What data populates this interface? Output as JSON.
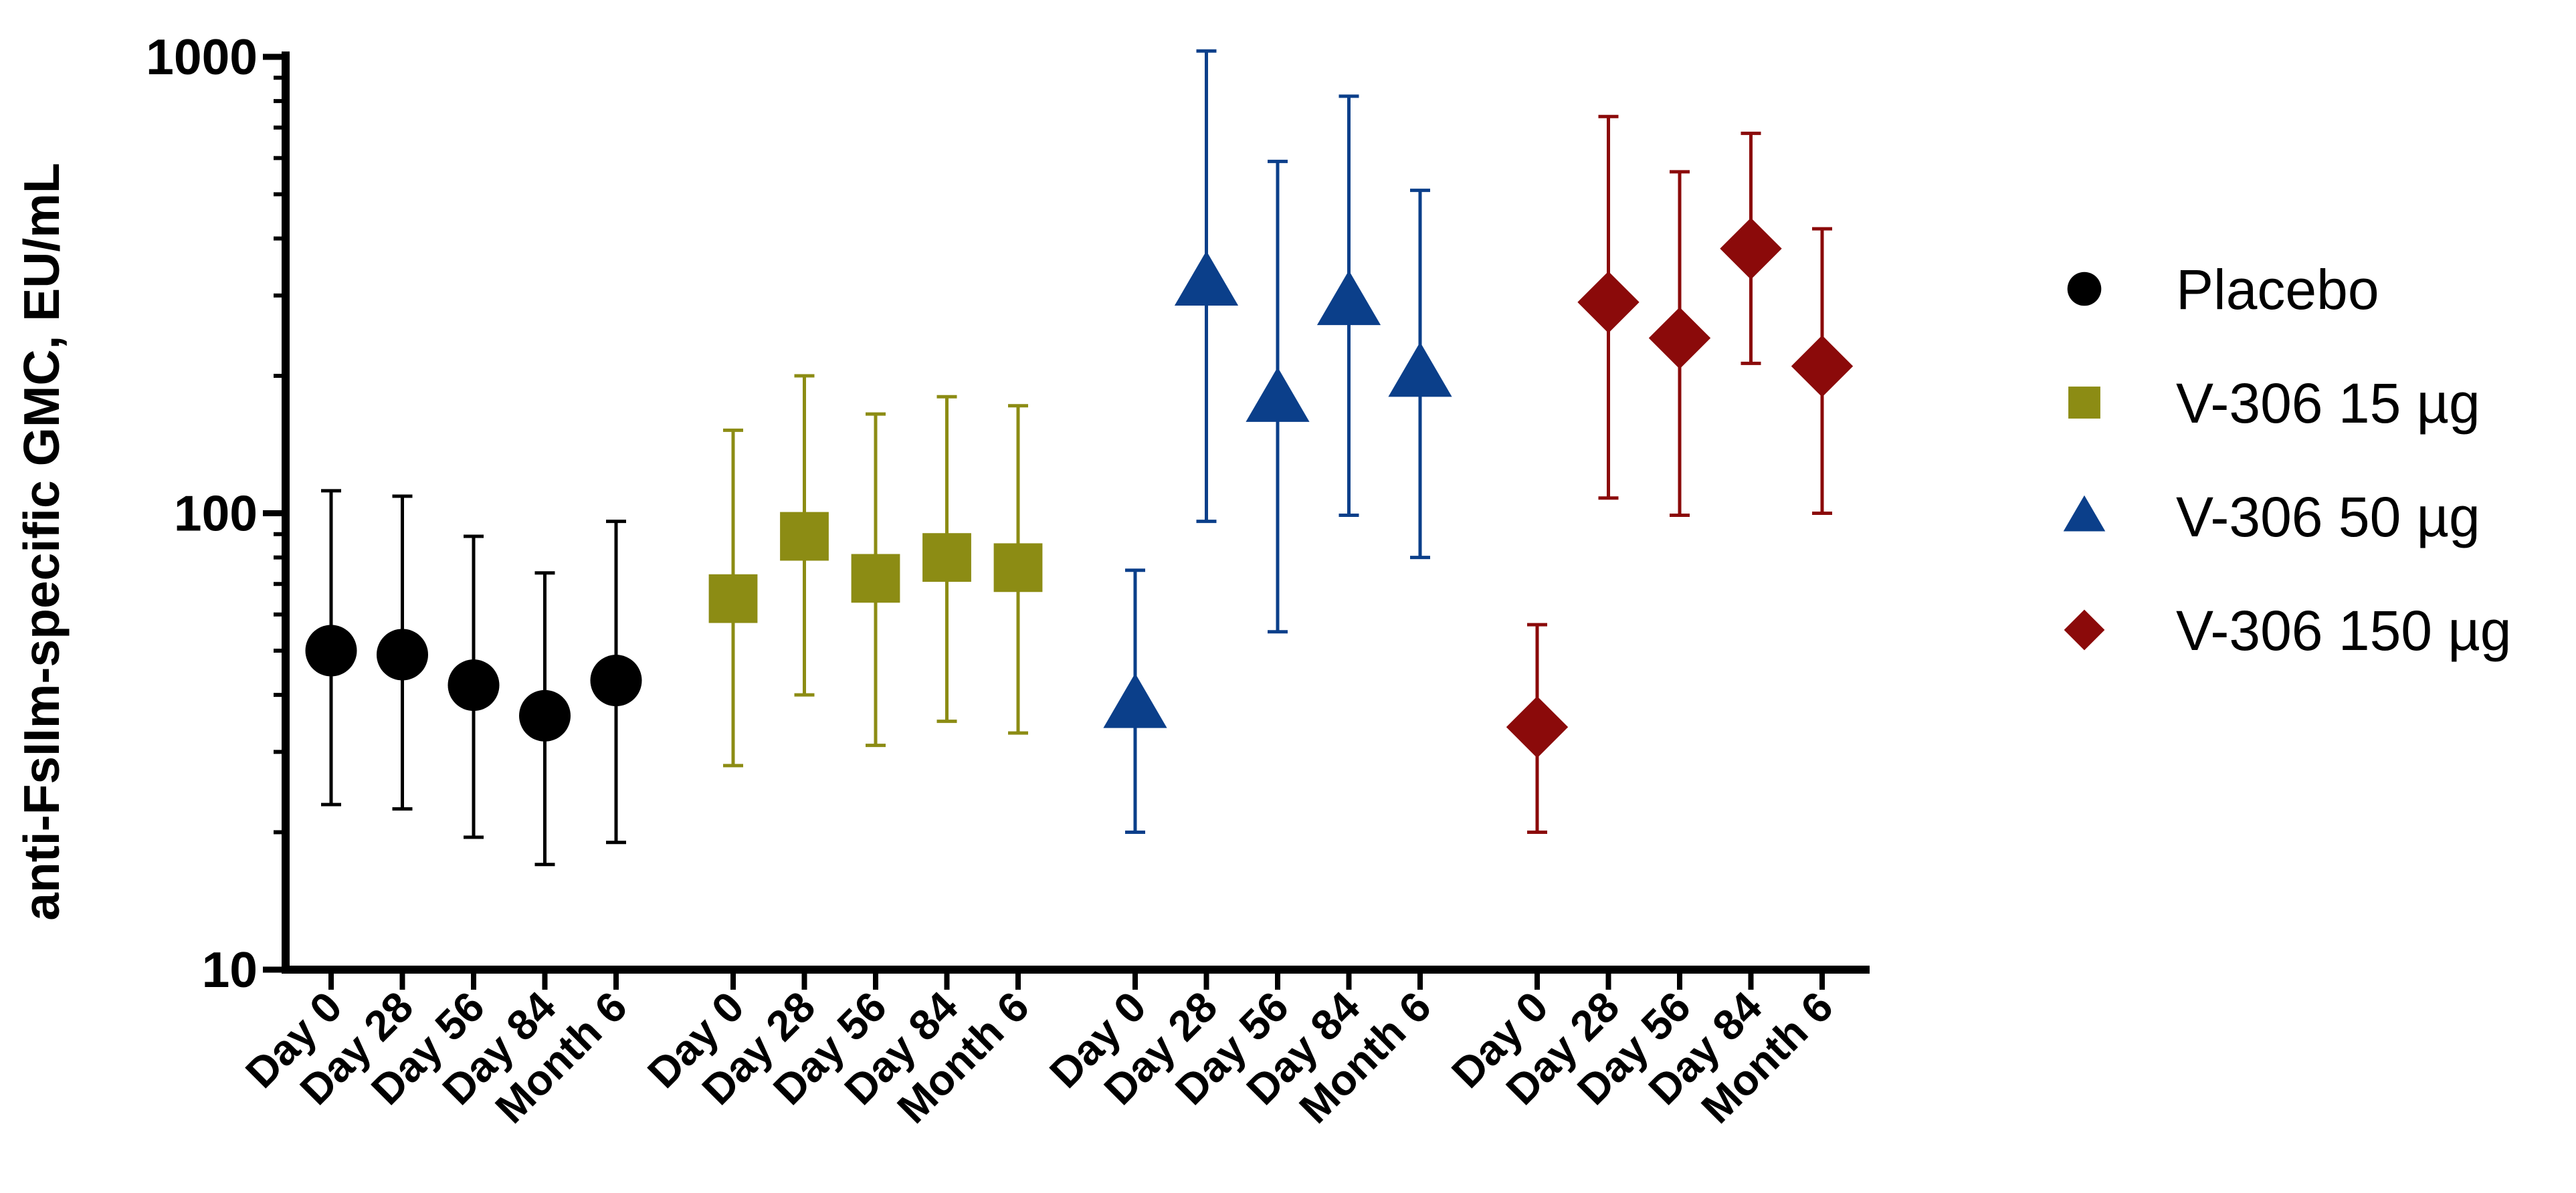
{
  "chart_data": {
    "type": "scatter",
    "title": "",
    "xlabel": "",
    "ylabel": "anti-FsIIm-specific GMC, EU/mL",
    "yscale": "log",
    "ylim": [
      10,
      1000
    ],
    "yticks": [
      {
        "value": 10,
        "label": "10"
      },
      {
        "value": 100,
        "label": "100"
      },
      {
        "value": 1000,
        "label": "1000"
      }
    ],
    "timepoints": [
      "Day 0",
      "Day 28",
      "Day 56",
      "Day 84",
      "Month 6"
    ],
    "legend_position": "right",
    "series": [
      {
        "name": "Placebo",
        "color": "#000000",
        "marker": "circle",
        "values": [
          50,
          49,
          42,
          36,
          43
        ],
        "lower": [
          23,
          22.5,
          19.5,
          17,
          19
        ],
        "upper": [
          112,
          109,
          89,
          74,
          96
        ]
      },
      {
        "name": "V-306 15 µg",
        "color": "#8C8C14",
        "marker": "square",
        "values": [
          65,
          89,
          72,
          80,
          76
        ],
        "lower": [
          28,
          40,
          31,
          35,
          33
        ],
        "upper": [
          152,
          200,
          165,
          180,
          172
        ]
      },
      {
        "name": "V-306 50 µg",
        "color": "#0B3F8A",
        "marker": "triangle",
        "values": [
          38,
          320,
          178,
          290,
          202
        ],
        "lower": [
          20,
          96,
          55,
          99,
          80
        ],
        "upper": [
          75,
          1030,
          590,
          820,
          510
        ]
      },
      {
        "name": "V-306 150 µg",
        "color": "#8B0A0A",
        "marker": "diamond",
        "values": [
          34,
          290,
          242,
          380,
          210
        ],
        "lower": [
          20,
          108,
          99,
          213,
          100
        ],
        "upper": [
          57,
          740,
          560,
          680,
          420
        ]
      }
    ]
  }
}
